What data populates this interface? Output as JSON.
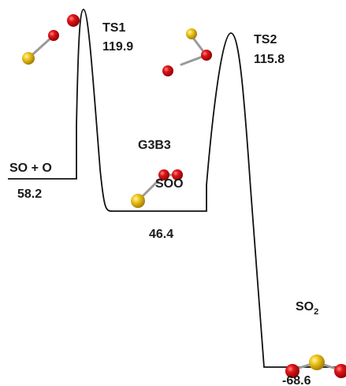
{
  "method": "G3B3",
  "states": [
    {
      "label": "SO + O",
      "energy": "58.2"
    },
    {
      "label": "TS1",
      "energy": "119.9"
    },
    {
      "label": "SOO",
      "energy": "46.4"
    },
    {
      "label": "TS2",
      "energy": "115.8"
    },
    {
      "label": "SO",
      "subscript": "2",
      "energy": "-68.6"
    }
  ]
}
